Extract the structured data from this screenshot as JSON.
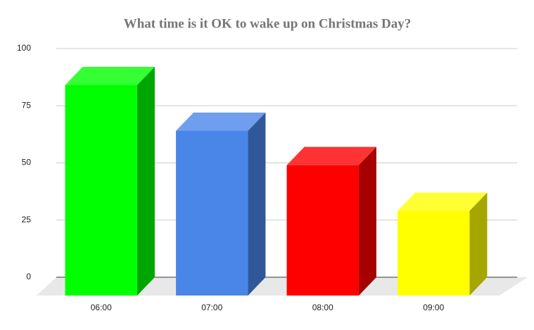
{
  "chart_data": {
    "type": "bar3d",
    "title": "What time is it OK to wake up on Christmas Day?",
    "categories": [
      "06:00",
      "07:00",
      "08:00",
      "09:00"
    ],
    "values": [
      92,
      72,
      57,
      37
    ],
    "colors": [
      "#00ff00",
      "#4a86e8",
      "#ff0000",
      "#ffff00"
    ],
    "ylim": [
      0,
      100
    ],
    "yticks": [
      0,
      25,
      50,
      75,
      100
    ],
    "grid": true
  }
}
